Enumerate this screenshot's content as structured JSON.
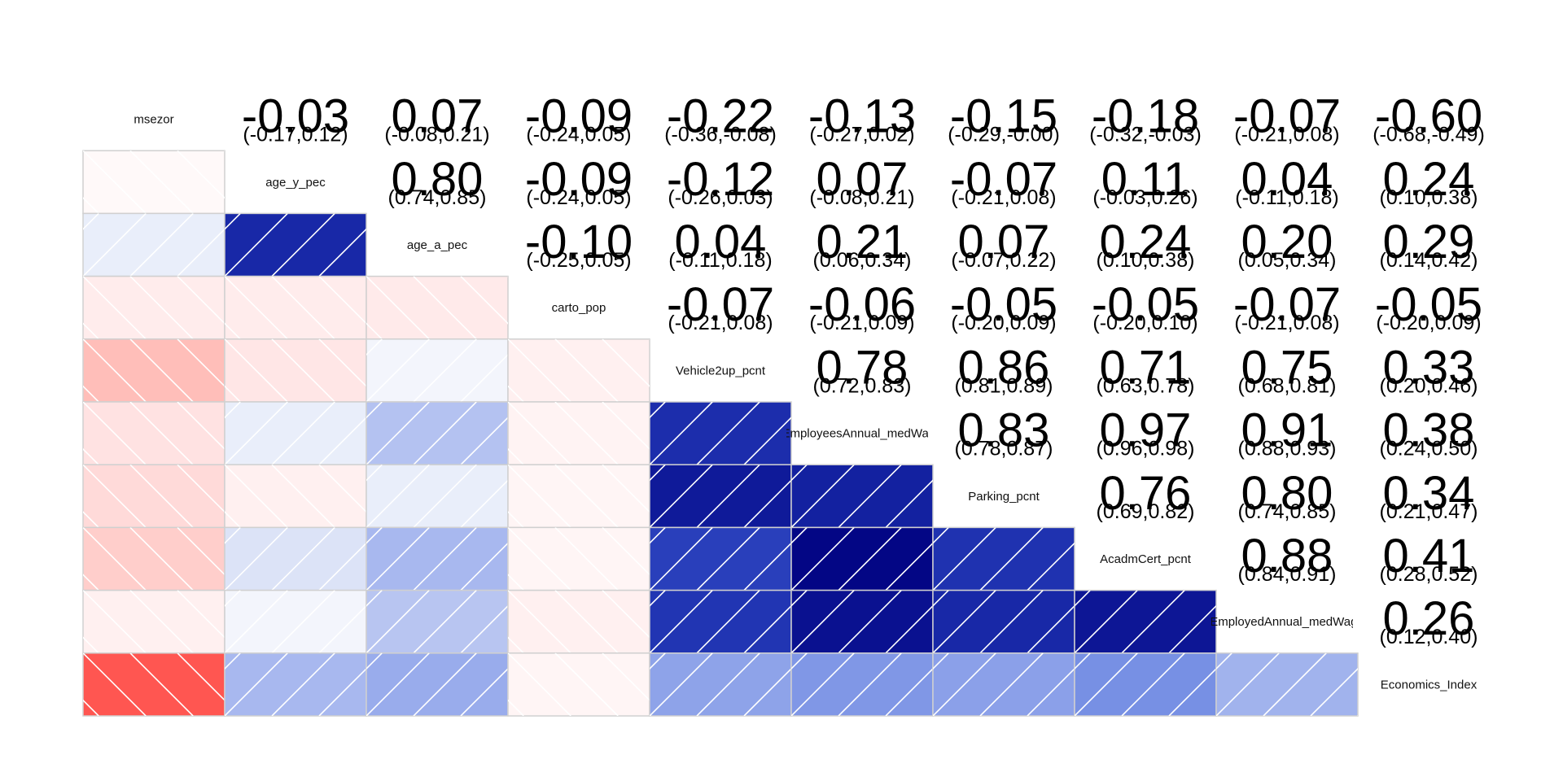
{
  "chart_data": {
    "type": "heatmap",
    "title": "",
    "variables": [
      "msezor",
      "age_y_pec",
      "age_a_pec",
      "carto_pop",
      "Vehicle2up_pcnt",
      "EmployeesAnnual_medWage",
      "Parking_pcnt",
      "AcadmCert_pcnt",
      "EmployedAnnual_medWage",
      "Economics_Index"
    ],
    "upper_triangle": "correlation coefficient with 95% confidence interval (text)",
    "lower_triangle": "color-coded correlation with hatching",
    "color_scale": {
      "negative": "#ff0000",
      "zero": "#ffffff",
      "positive": "#00007f",
      "range": [
        -1,
        1
      ]
    },
    "coefficients": [
      [
        1,
        -0.03,
        0.07,
        -0.09,
        -0.22,
        -0.13,
        -0.15,
        -0.18,
        -0.07,
        -0.6
      ],
      [
        -0.03,
        1,
        0.8,
        -0.09,
        -0.12,
        0.07,
        -0.07,
        0.11,
        0.04,
        0.24
      ],
      [
        0.07,
        0.8,
        1,
        -0.1,
        0.04,
        0.21,
        0.07,
        0.24,
        0.2,
        0.29
      ],
      [
        -0.09,
        -0.09,
        -0.1,
        1,
        -0.07,
        -0.06,
        -0.05,
        -0.05,
        -0.07,
        -0.05
      ],
      [
        -0.22,
        -0.12,
        0.04,
        -0.07,
        1,
        0.78,
        0.86,
        0.71,
        0.75,
        0.33
      ],
      [
        -0.13,
        0.07,
        0.21,
        -0.06,
        0.78,
        1,
        0.83,
        0.97,
        0.91,
        0.38
      ],
      [
        -0.15,
        -0.07,
        0.07,
        -0.05,
        0.86,
        0.83,
        1,
        0.76,
        0.8,
        0.34
      ],
      [
        -0.18,
        0.11,
        0.24,
        -0.05,
        0.71,
        0.97,
        0.76,
        1,
        0.88,
        0.41
      ],
      [
        -0.07,
        0.04,
        0.2,
        -0.07,
        0.75,
        0.91,
        0.8,
        0.88,
        1,
        0.26
      ],
      [
        -0.6,
        0.24,
        0.29,
        -0.05,
        0.33,
        0.38,
        0.34,
        0.41,
        0.26,
        1
      ]
    ],
    "upper_labels": [
      {
        "row": 0,
        "col": 1,
        "coef": "-0.03",
        "ci": "(-0.17,0.12)"
      },
      {
        "row": 0,
        "col": 2,
        "coef": "0.07",
        "ci": "(-0.08,0.21)"
      },
      {
        "row": 0,
        "col": 3,
        "coef": "-0.09",
        "ci": "(-0.24,0.05)"
      },
      {
        "row": 0,
        "col": 4,
        "coef": "-0.22",
        "ci": "(-0.36,-0.08)"
      },
      {
        "row": 0,
        "col": 5,
        "coef": "-0.13",
        "ci": "(-0.27,0.02)"
      },
      {
        "row": 0,
        "col": 6,
        "coef": "-0.15",
        "ci": "(-0.29,-0.00)"
      },
      {
        "row": 0,
        "col": 7,
        "coef": "-0.18",
        "ci": "(-0.32,-0.03)"
      },
      {
        "row": 0,
        "col": 8,
        "coef": "-0.07",
        "ci": "(-0.21,0.08)"
      },
      {
        "row": 0,
        "col": 9,
        "coef": "-0.60",
        "ci": "(-0.68,-0.49)"
      },
      {
        "row": 1,
        "col": 2,
        "coef": "0.80",
        "ci": "(0.74,0.85)"
      },
      {
        "row": 1,
        "col": 3,
        "coef": "-0.09",
        "ci": "(-0.24,0.05)"
      },
      {
        "row": 1,
        "col": 4,
        "coef": "-0.12",
        "ci": "(-0.26,0.03)"
      },
      {
        "row": 1,
        "col": 5,
        "coef": "0.07",
        "ci": "(-0.08,0.21)"
      },
      {
        "row": 1,
        "col": 6,
        "coef": "-0.07",
        "ci": "(-0.21,0.08)"
      },
      {
        "row": 1,
        "col": 7,
        "coef": "0.11",
        "ci": "(-0.03,0.26)"
      },
      {
        "row": 1,
        "col": 8,
        "coef": "0.04",
        "ci": "(-0.11,0.18)"
      },
      {
        "row": 1,
        "col": 9,
        "coef": "0.24",
        "ci": "(0.10,0.38)"
      },
      {
        "row": 2,
        "col": 3,
        "coef": "-0.10",
        "ci": "(-0.25,0.05)"
      },
      {
        "row": 2,
        "col": 4,
        "coef": "0.04",
        "ci": "(-0.11,0.18)"
      },
      {
        "row": 2,
        "col": 5,
        "coef": "0.21",
        "ci": "(0.06,0.34)"
      },
      {
        "row": 2,
        "col": 6,
        "coef": "0.07",
        "ci": "(-0.07,0.22)"
      },
      {
        "row": 2,
        "col": 7,
        "coef": "0.24",
        "ci": "(0.10,0.38)"
      },
      {
        "row": 2,
        "col": 8,
        "coef": "0.20",
        "ci": "(0.05,0.34)"
      },
      {
        "row": 2,
        "col": 9,
        "coef": "0.29",
        "ci": "(0.14,0.42)"
      },
      {
        "row": 3,
        "col": 4,
        "coef": "-0.07",
        "ci": "(-0.21,0.08)"
      },
      {
        "row": 3,
        "col": 5,
        "coef": "-0.06",
        "ci": "(-0.21,0.09)"
      },
      {
        "row": 3,
        "col": 6,
        "coef": "-0.05",
        "ci": "(-0.20,0.09)"
      },
      {
        "row": 3,
        "col": 7,
        "coef": "-0.05",
        "ci": "(-0.20,0.10)"
      },
      {
        "row": 3,
        "col": 8,
        "coef": "-0.07",
        "ci": "(-0.21,0.08)"
      },
      {
        "row": 3,
        "col": 9,
        "coef": "-0.05",
        "ci": "(-0.20,0.09)"
      },
      {
        "row": 4,
        "col": 5,
        "coef": "0.78",
        "ci": "(0.72,0.83)"
      },
      {
        "row": 4,
        "col": 6,
        "coef": "0.86",
        "ci": "(0.81,0.89)"
      },
      {
        "row": 4,
        "col": 7,
        "coef": "0.71",
        "ci": "(0.63,0.78)"
      },
      {
        "row": 4,
        "col": 8,
        "coef": "0.75",
        "ci": "(0.68,0.81)"
      },
      {
        "row": 4,
        "col": 9,
        "coef": "0.33",
        "ci": "(0.20,0.46)"
      },
      {
        "row": 5,
        "col": 6,
        "coef": "0.83",
        "ci": "(0.78,0.87)"
      },
      {
        "row": 5,
        "col": 7,
        "coef": "0.97",
        "ci": "(0.96,0.98)"
      },
      {
        "row": 5,
        "col": 8,
        "coef": "0.91",
        "ci": "(0.88,0.93)"
      },
      {
        "row": 5,
        "col": 9,
        "coef": "0.38",
        "ci": "(0.24,0.50)"
      },
      {
        "row": 6,
        "col": 7,
        "coef": "0.76",
        "ci": "(0.69,0.82)"
      },
      {
        "row": 6,
        "col": 8,
        "coef": "0.80",
        "ci": "(0.74,0.85)"
      },
      {
        "row": 6,
        "col": 9,
        "coef": "0.34",
        "ci": "(0.21,0.47)"
      },
      {
        "row": 7,
        "col": 8,
        "coef": "0.88",
        "ci": "(0.84,0.91)"
      },
      {
        "row": 7,
        "col": 9,
        "coef": "0.41",
        "ci": "(0.28,0.52)"
      },
      {
        "row": 8,
        "col": 9,
        "coef": "0.26",
        "ci": "(0.12,0.40)"
      }
    ],
    "grid": false,
    "legend": "none"
  }
}
